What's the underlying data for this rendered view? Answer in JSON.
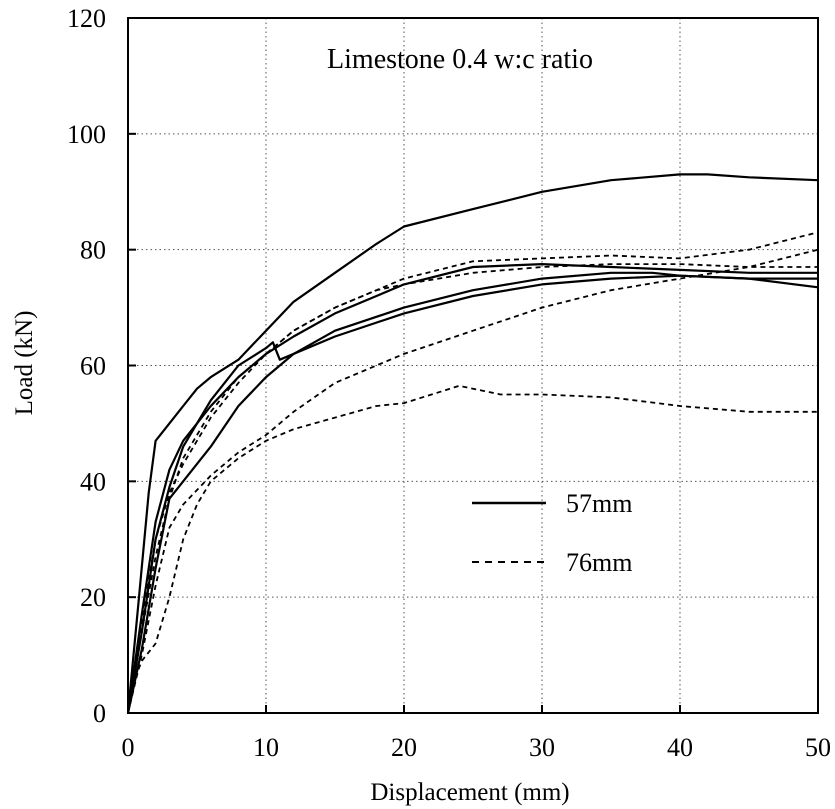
{
  "chart_data": {
    "type": "line",
    "title": "",
    "annotation": "Limestone 0.4 w:c ratio",
    "xlabel": "Displacement (mm)",
    "ylabel": "Load (kN)",
    "xlim": [
      0,
      50
    ],
    "ylim": [
      0,
      120
    ],
    "xticks": [
      "0",
      "10",
      "20",
      "30",
      "40",
      "50"
    ],
    "yticks": [
      "0",
      "20",
      "40",
      "60",
      "80",
      "100",
      "120"
    ],
    "grid": true,
    "legend_position": "center-right",
    "legend": [
      {
        "label": "57mm",
        "style": "solid"
      },
      {
        "label": "76mm",
        "style": "dashed"
      }
    ],
    "series": [
      {
        "group": "57mm",
        "style": "solid",
        "x": [
          0,
          0.8,
          1.5,
          2.0,
          3.0,
          4.0,
          5.0,
          6.0,
          8.0,
          10.0,
          12.0,
          15.0,
          18.0,
          20.0,
          25.0,
          30.0,
          35.0,
          40.0,
          42.0,
          45.0,
          50.0
        ],
        "y": [
          0,
          20,
          38,
          47,
          50,
          53,
          56,
          58,
          61,
          66,
          71,
          76,
          81,
          84,
          87,
          90,
          92,
          93,
          93,
          92.5,
          92
        ]
      },
      {
        "group": "57mm",
        "style": "solid",
        "x": [
          0,
          1.0,
          2.0,
          3.0,
          4.0,
          5.0,
          6.0,
          8.0,
          10.0,
          12.0,
          15.0,
          20.0,
          25.0,
          30.0,
          35.0,
          40.0,
          45.0,
          50.0
        ],
        "y": [
          0,
          17,
          33,
          42,
          47,
          50,
          53,
          58,
          62,
          65,
          69,
          74,
          77,
          77.5,
          77,
          76.5,
          76,
          76
        ]
      },
      {
        "group": "57mm",
        "style": "solid",
        "x": [
          0,
          1.0,
          2.0,
          3.0,
          4.0,
          6.0,
          8.0,
          10.0,
          10.5,
          11.0,
          15.0,
          20.0,
          25.0,
          30.0,
          35.0,
          40.0,
          45.0,
          50.0
        ],
        "y": [
          0,
          14,
          30,
          39,
          46,
          54,
          60,
          63,
          64,
          61,
          65,
          69,
          72,
          74,
          75,
          75.5,
          75,
          73.5
        ]
      },
      {
        "group": "57mm",
        "style": "solid",
        "x": [
          0,
          1.0,
          2.0,
          3.0,
          4.0,
          6.0,
          8.0,
          10.0,
          12.0,
          15.0,
          20.0,
          25.0,
          30.0,
          35.0,
          38.0,
          40.0,
          45.0,
          50.0
        ],
        "y": [
          0,
          11,
          25,
          37,
          40,
          46,
          53,
          58,
          62,
          66,
          70,
          73,
          75,
          76,
          76,
          75.5,
          75,
          75
        ]
      },
      {
        "group": "76mm",
        "style": "dashed",
        "x": [
          0,
          1.0,
          2.0,
          3.0,
          4.0,
          6.0,
          8.0,
          10.0,
          12.0,
          15.0,
          17.0,
          20.0,
          25.0,
          30.0,
          35.0,
          40.0,
          45.0,
          50.0
        ],
        "y": [
          0,
          14,
          27,
          37,
          44,
          52,
          58,
          62,
          66,
          70,
          72,
          75,
          78,
          78.5,
          79,
          78.5,
          80,
          83
        ]
      },
      {
        "group": "76mm",
        "style": "dashed",
        "x": [
          0,
          1.0,
          2.0,
          3.0,
          4.0,
          6.0,
          8.0,
          10.0,
          12.0,
          15.0,
          18.0,
          20.0,
          25.0,
          30.0,
          35.0,
          40.0,
          45.0,
          50.0
        ],
        "y": [
          0,
          16,
          30,
          38,
          43,
          51,
          57,
          62,
          66,
          70,
          73,
          74,
          76,
          77,
          77.5,
          77.5,
          77,
          77
        ]
      },
      {
        "group": "76mm",
        "style": "dashed",
        "x": [
          0,
          1.0,
          2.0,
          3.0,
          4.0,
          6.0,
          8.0,
          10.0,
          12.0,
          15.0,
          18.0,
          20.0,
          25.0,
          30.0,
          35.0,
          40.0,
          45.0,
          50.0
        ],
        "y": [
          0,
          10,
          22,
          32,
          36,
          41,
          45,
          48,
          52,
          57,
          60,
          62,
          66,
          70,
          73,
          75,
          77,
          80
        ]
      },
      {
        "group": "76mm",
        "style": "dashed",
        "x": [
          0,
          0.5,
          1.0,
          2.0,
          3.0,
          4.0,
          5.0,
          6.0,
          8.0,
          10.0,
          12.0,
          15.0,
          18.0,
          20.0,
          22.0,
          24.0,
          27.0,
          30.0,
          35.0,
          40.0,
          45.0,
          50.0
        ],
        "y": [
          0,
          6,
          9,
          12,
          20,
          30,
          36,
          40,
          44,
          47,
          49,
          51,
          53,
          53.5,
          55,
          56.5,
          55,
          55,
          54.5,
          53,
          52,
          52
        ]
      }
    ]
  }
}
